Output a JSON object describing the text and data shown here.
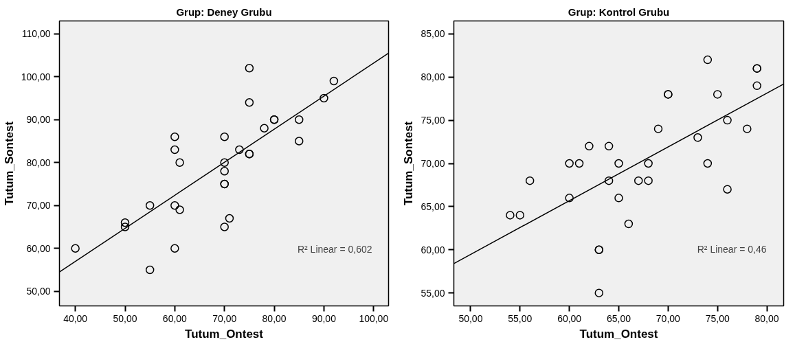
{
  "chart_data": [
    {
      "type": "scatter",
      "title": "Grup: Deney Grubu",
      "xlabel": "Tutum_Ontest",
      "ylabel": "Tutum_Sontest",
      "grid": false,
      "xlim": [
        36.8,
        103
      ],
      "ylim": [
        46.6,
        113
      ],
      "xticks": [
        {
          "value": 40,
          "label": "40,00"
        },
        {
          "value": 50,
          "label": "50,00"
        },
        {
          "value": 60,
          "label": "60,00"
        },
        {
          "value": 70,
          "label": "70,00"
        },
        {
          "value": 80,
          "label": "80,00"
        },
        {
          "value": 90,
          "label": "90,00"
        },
        {
          "value": 100,
          "label": "100,00"
        }
      ],
      "yticks": [
        {
          "value": 50,
          "label": "50,00"
        },
        {
          "value": 60,
          "label": "60,00"
        },
        {
          "value": 70,
          "label": "70,00"
        },
        {
          "value": 80,
          "label": "80,00"
        },
        {
          "value": 90,
          "label": "90,00"
        },
        {
          "value": 100,
          "label": "100,00"
        },
        {
          "value": 110,
          "label": "110,00"
        }
      ],
      "annotations": [
        "R² Linear = 0,602"
      ],
      "series": [
        {
          "color": "#000000",
          "marker": "circle",
          "x": [
            40,
            50,
            50,
            55,
            55,
            60,
            60,
            61,
            60,
            61,
            60,
            70,
            70,
            70,
            70,
            70,
            70,
            71,
            73,
            75,
            75,
            75,
            75,
            78,
            80,
            80,
            85,
            85,
            90,
            92
          ],
          "values": [
            60,
            66,
            65,
            70,
            55,
            86,
            83,
            80,
            70,
            69,
            60,
            86,
            80,
            78,
            75,
            75,
            65,
            67,
            83,
            102,
            94,
            82,
            82,
            88,
            90,
            90,
            90,
            85,
            95,
            99
          ]
        },
        {
          "type": "line",
          "marker": "none",
          "color": "#000000",
          "x": [
            36.8,
            103
          ],
          "values": [
            54.5,
            105.5
          ]
        }
      ]
    },
    {
      "type": "scatter",
      "title": "Grup: Kontrol Grubu",
      "xlabel": "Tutum_Ontest",
      "ylabel": "Tutum_Sontest",
      "grid": false,
      "xlim": [
        48.3,
        81.7
      ],
      "ylim": [
        53.5,
        86.5
      ],
      "xticks": [
        {
          "value": 50,
          "label": "50,00"
        },
        {
          "value": 55,
          "label": "55,00"
        },
        {
          "value": 60,
          "label": "60,00"
        },
        {
          "value": 65,
          "label": "65,00"
        },
        {
          "value": 70,
          "label": "70,00"
        },
        {
          "value": 75,
          "label": "75,00"
        },
        {
          "value": 80,
          "label": "80,00"
        }
      ],
      "yticks": [
        {
          "value": 55,
          "label": "55,00"
        },
        {
          "value": 60,
          "label": "60,00"
        },
        {
          "value": 65,
          "label": "65,00"
        },
        {
          "value": 70,
          "label": "70,00"
        },
        {
          "value": 75,
          "label": "75,00"
        },
        {
          "value": 80,
          "label": "80,00"
        },
        {
          "value": 85,
          "label": "85,00"
        }
      ],
      "annotations": [
        "R² Linear = 0,46"
      ],
      "series": [
        {
          "color": "#000000",
          "marker": "circle",
          "x": [
            54,
            55,
            56,
            60,
            60,
            61,
            62,
            63,
            63,
            63,
            64,
            64,
            65,
            65,
            66,
            67,
            68,
            68,
            69,
            70,
            70,
            73,
            74,
            74,
            75,
            76,
            76,
            78,
            79,
            79,
            79
          ],
          "values": [
            64,
            64,
            68,
            70,
            66,
            70,
            72,
            60,
            60,
            55,
            72,
            68,
            70,
            66,
            63,
            68,
            68,
            70,
            74,
            78,
            78,
            73,
            82,
            70,
            78,
            75,
            67,
            74,
            81,
            81,
            79
          ]
        },
        {
          "type": "line",
          "marker": "none",
          "color": "#000000",
          "x": [
            48.3,
            81.7
          ],
          "values": [
            58.4,
            79.2
          ]
        }
      ]
    }
  ]
}
